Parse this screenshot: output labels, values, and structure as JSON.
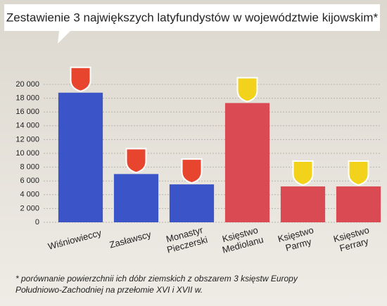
{
  "chart_data": {
    "type": "bar",
    "title": "Zestawienie 3 największych latyfundystów w województwie kijowskim*",
    "categories": [
      [
        "Wiśniowieccy"
      ],
      [
        "Zasławscy"
      ],
      [
        "Monastyr",
        "Pieczerski"
      ],
      [
        "Księstwo",
        "Mediolanu"
      ],
      [
        "Księstwo",
        "Parmy"
      ],
      [
        "Księstwo",
        "Ferrary"
      ]
    ],
    "values": [
      18800,
      7000,
      5500,
      17300,
      5200,
      5200
    ],
    "colors": [
      "#3b55c9",
      "#3b55c9",
      "#3b55c9",
      "#d94a52",
      "#d94a52",
      "#d94a52"
    ],
    "ylim": [
      0,
      20000
    ],
    "yticks": [
      {
        "value": 0,
        "label": "0"
      },
      {
        "value": 2000,
        "label": "2 000"
      },
      {
        "value": 4000,
        "label": "4 000"
      },
      {
        "value": 6000,
        "label": "6 000"
      },
      {
        "value": 8000,
        "label": "8 000"
      },
      {
        "value": 10000,
        "label": "10 000"
      },
      {
        "value": 12000,
        "label": "12 000"
      },
      {
        "value": 14000,
        "label": "14 000"
      },
      {
        "value": 16000,
        "label": "16 000"
      },
      {
        "value": 18000,
        "label": "18 000"
      },
      {
        "value": 20000,
        "label": "20 000"
      }
    ],
    "grid": true,
    "footnote": [
      "* porównanie powierzchnii ich dóbr ziemskich z obszarem 3 księstw Europy",
      "Południowo-Zachodniej na przełomie XVI i XVII w."
    ]
  }
}
